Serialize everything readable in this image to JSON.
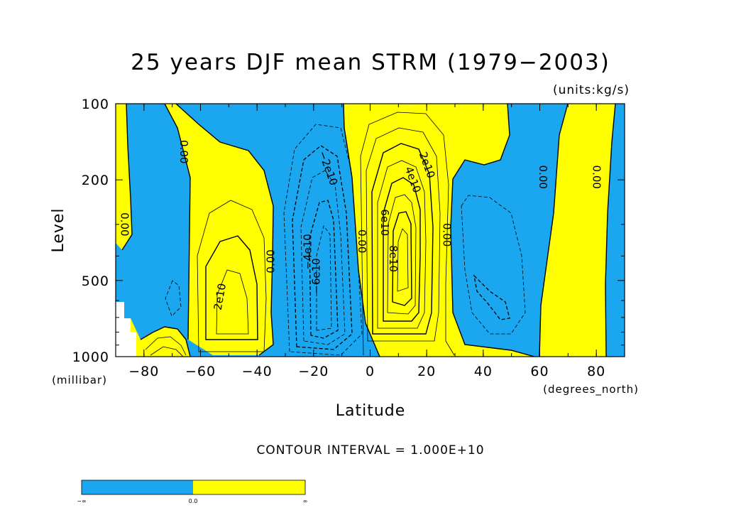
{
  "chart_data": {
    "type": "contour",
    "title": "25 years DJF mean STRM (1979−2003)",
    "units_label": "(units:kg/s)",
    "xlabel": "Latitude",
    "x_units": "(degrees_north)",
    "ylabel": "Level",
    "y_units": "(millibar)",
    "xlim": [
      -90,
      90
    ],
    "ylim": [
      100,
      1000
    ],
    "y_scale": "log",
    "x_ticks": [
      -80,
      -60,
      -40,
      -20,
      0,
      20,
      40,
      60,
      80
    ],
    "x_tick_labels": [
      "−80",
      "−60",
      "−40",
      "−20",
      "0",
      "20",
      "40",
      "60",
      "80"
    ],
    "y_ticks": [
      100,
      200,
      500,
      1000
    ],
    "y_tick_labels": [
      "100",
      "200",
      "500",
      "1000"
    ],
    "contour_interval_label": "CONTOUR INTERVAL = 1.000E+10",
    "contour_interval": 10000000000.0,
    "fill_colors": {
      "negative": "#1aa7ef",
      "positive": "#ffff00"
    },
    "colorbar": {
      "labels": [
        "−∞",
        "0.0",
        "∞"
      ]
    },
    "contour_labels": [
      {
        "text": "0.00",
        "lat": -87,
        "lev": 300,
        "rotate": 90
      },
      {
        "text": "0.00",
        "lat": -66,
        "lev": 155,
        "rotate": 90
      },
      {
        "text": "2e10",
        "lat": -53,
        "lev": 580,
        "rotate": -80
      },
      {
        "text": "0.00",
        "lat": -35,
        "lev": 420,
        "rotate": -90
      },
      {
        "text": "−2e10",
        "lat": -15,
        "lev": 180,
        "rotate": 70
      },
      {
        "text": "−4e10",
        "lat": -22,
        "lev": 385,
        "rotate": -90
      },
      {
        "text": "−6e10",
        "lat": -19,
        "lev": 480,
        "rotate": -90
      },
      {
        "text": "0.00",
        "lat": -3,
        "lev": 350,
        "rotate": 90
      },
      {
        "text": "6e10",
        "lat": 5,
        "lev": 295,
        "rotate": 90
      },
      {
        "text": "8e10",
        "lat": 8,
        "lev": 410,
        "rotate": 90
      },
      {
        "text": "2e10",
        "lat": 20,
        "lev": 175,
        "rotate": 70
      },
      {
        "text": "4e10",
        "lat": 15,
        "lev": 200,
        "rotate": 70
      },
      {
        "text": "0.00",
        "lat": 27,
        "lev": 330,
        "rotate": 90
      },
      {
        "text": "0.00",
        "lat": 61,
        "lev": 195,
        "rotate": 90
      },
      {
        "text": "0.00",
        "lat": 80,
        "lev": 195,
        "rotate": 90
      }
    ]
  }
}
